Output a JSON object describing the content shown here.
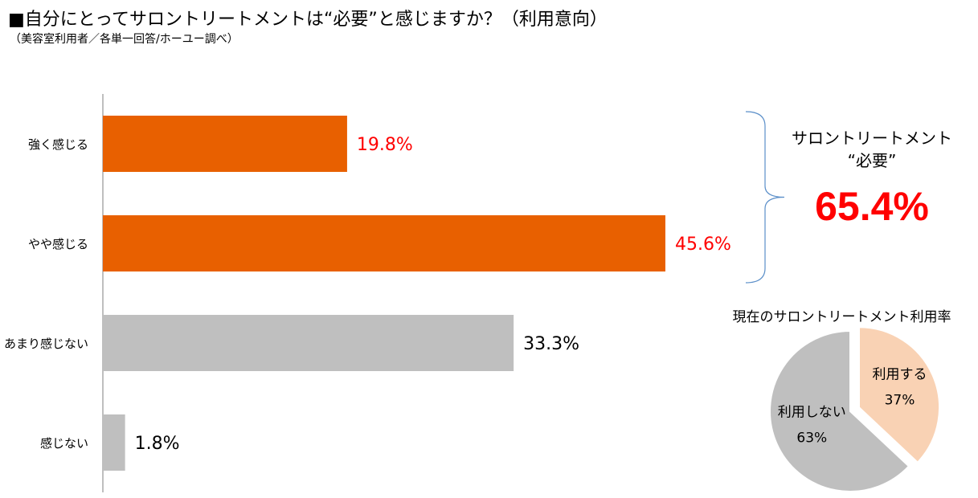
{
  "title": "■自分にとってサロントリートメントは“必要”と感じますか？（利用意向）",
  "subtitle": "（美容室利用者／各単一回答/ホーユー調べ）",
  "summary": {
    "label_line1": "サロントリートメント",
    "label_line2": "“必要”",
    "value": "65.4%"
  },
  "pie_title": "現在のサロントリートメント利用率",
  "colors": {
    "highlight_bar": "#e86000",
    "other_bar": "#bfbfbf",
    "highlight_text": "#ff0000",
    "normal_text": "#000000",
    "pie_use": "#f9d2b4",
    "pie_not_use": "#bfbfbf",
    "bracket": "#5b8fc9"
  },
  "chart_data": [
    {
      "type": "bar",
      "orientation": "horizontal",
      "categories": [
        "強く感じる",
        "やや感じる",
        "あまり感じない",
        "感じない"
      ],
      "values": [
        19.8,
        45.6,
        33.3,
        1.8
      ],
      "value_labels": [
        "19.8%",
        "45.6%",
        "33.3%",
        "1.8%"
      ],
      "highlighted": [
        true,
        true,
        false,
        false
      ],
      "xlim": [
        0,
        50
      ],
      "grid": false
    },
    {
      "type": "pie",
      "categories": [
        "利用する",
        "利用しない"
      ],
      "values": [
        37,
        63
      ],
      "value_labels": [
        "37%",
        "63%"
      ],
      "exploded": [
        true,
        false
      ]
    }
  ]
}
